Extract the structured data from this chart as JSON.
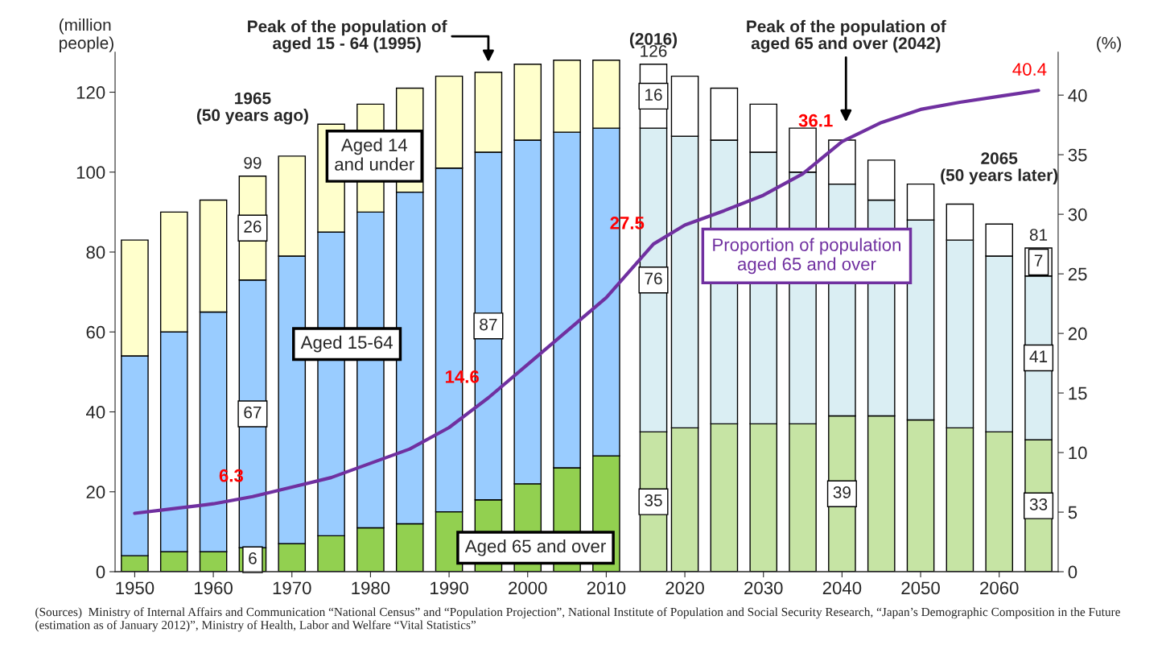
{
  "chart_data": {
    "type": "bar",
    "stacked": true,
    "ylabel": "(million\npeople)",
    "y2label": "(%)",
    "x": [
      1950,
      1955,
      1960,
      1965,
      1970,
      1975,
      1980,
      1985,
      1990,
      1995,
      2000,
      2005,
      2010,
      2016,
      2020,
      2025,
      2030,
      2035,
      2040,
      2045,
      2050,
      2055,
      2060,
      2065
    ],
    "xlim": [
      1947.5,
      2067.5
    ],
    "xticks": [
      1950,
      1960,
      1970,
      1980,
      1990,
      2000,
      2010,
      2020,
      2030,
      2040,
      2050,
      2060
    ],
    "ylim": [
      0,
      130
    ],
    "yticks": [
      0,
      20,
      40,
      60,
      80,
      100,
      120
    ],
    "y2lim": [
      0,
      43.6
    ],
    "y2ticks": [
      0,
      5,
      10,
      15,
      20,
      25,
      30,
      35,
      40
    ],
    "grid": false,
    "legend": false,
    "series": [
      {
        "name": "Aged 65 and over",
        "values": [
          4,
          5,
          5,
          6,
          7,
          9,
          11,
          12,
          15,
          18,
          22,
          26,
          29,
          35,
          36,
          37,
          37,
          37,
          39,
          39,
          38,
          36,
          35,
          33
        ],
        "colors": [
          "#92d050",
          "#92d050",
          "#92d050",
          "#92d050",
          "#92d050",
          "#92d050",
          "#92d050",
          "#92d050",
          "#92d050",
          "#92d050",
          "#92d050",
          "#92d050",
          "#92d050",
          "#c6e4a4",
          "#c6e4a4",
          "#c6e4a4",
          "#c6e4a4",
          "#c6e4a4",
          "#c6e4a4",
          "#c6e4a4",
          "#c6e4a4",
          "#c6e4a4",
          "#c6e4a4",
          "#c6e4a4"
        ],
        "value_labels": [
          null,
          null,
          null,
          "6",
          null,
          null,
          null,
          null,
          null,
          null,
          null,
          null,
          null,
          "35",
          null,
          null,
          null,
          null,
          "39",
          null,
          null,
          null,
          null,
          "33"
        ]
      },
      {
        "name": "Aged 15-64",
        "values": [
          50,
          55,
          60,
          67,
          72,
          76,
          79,
          83,
          86,
          87,
          86,
          84,
          82,
          76,
          73,
          71,
          68,
          63,
          58,
          54,
          50,
          47,
          44,
          41
        ],
        "colors": [
          "#99ccff",
          "#99ccff",
          "#99ccff",
          "#99ccff",
          "#99ccff",
          "#99ccff",
          "#99ccff",
          "#99ccff",
          "#99ccff",
          "#99ccff",
          "#99ccff",
          "#99ccff",
          "#99ccff",
          "#daeef3",
          "#daeef3",
          "#daeef3",
          "#daeef3",
          "#daeef3",
          "#daeef3",
          "#daeef3",
          "#daeef3",
          "#daeef3",
          "#daeef3",
          "#daeef3"
        ],
        "value_labels": [
          null,
          null,
          null,
          "67",
          null,
          null,
          null,
          null,
          null,
          "87",
          null,
          null,
          null,
          "76",
          null,
          null,
          null,
          null,
          null,
          null,
          null,
          null,
          null,
          "41"
        ]
      },
      {
        "name": "Aged 14\nand under",
        "values": [
          29,
          30,
          28,
          26,
          25,
          27,
          27,
          26,
          23,
          20,
          19,
          18,
          17,
          16,
          15,
          13,
          12,
          11,
          11,
          10,
          9,
          9,
          8,
          7
        ],
        "colors": [
          "#ffffcc",
          "#ffffcc",
          "#ffffcc",
          "#ffffcc",
          "#ffffcc",
          "#ffffcc",
          "#ffffcc",
          "#ffffcc",
          "#ffffcc",
          "#ffffcc",
          "#ffffcc",
          "#ffffcc",
          "#ffffcc",
          "#ffffff",
          "#ffffff",
          "#ffffff",
          "#ffffff",
          "#ffffff",
          "#ffffff",
          "#ffffff",
          "#ffffff",
          "#ffffff",
          "#ffffff",
          "#ffffff"
        ],
        "value_labels": [
          null,
          null,
          null,
          "26",
          null,
          null,
          null,
          null,
          null,
          null,
          null,
          null,
          null,
          "16",
          null,
          null,
          null,
          null,
          null,
          null,
          null,
          null,
          null,
          "7"
        ]
      },
      {
        "name": "Proportion of population\naged 65 and over",
        "type": "line",
        "axis": "y2",
        "color": "#7030a0",
        "marker": "none",
        "line_style": "solid",
        "values": [
          4.9,
          5.3,
          5.7,
          6.3,
          7.1,
          7.9,
          9.1,
          10.3,
          12.1,
          14.6,
          17.4,
          20.2,
          23.0,
          27.5,
          29.1,
          30.3,
          31.6,
          33.4,
          36.1,
          37.7,
          38.8,
          39.4,
          39.9,
          40.4
        ],
        "value_labels": [
          null,
          null,
          null,
          "6.3",
          null,
          null,
          null,
          null,
          null,
          "14.6",
          null,
          null,
          null,
          "27.5",
          null,
          null,
          null,
          null,
          "36.1",
          null,
          null,
          null,
          null,
          "40.4"
        ]
      }
    ],
    "totals": [
      null,
      null,
      null,
      "99",
      null,
      null,
      null,
      null,
      null,
      null,
      null,
      null,
      null,
      "126",
      null,
      null,
      null,
      null,
      null,
      null,
      null,
      null,
      null,
      "81"
    ],
    "annotations": [
      "Peak of the population of\naged 15 - 64 (1995)",
      "(2016)",
      "Peak of the population of\naged 65 and over (2042)",
      "1965\n(50 years ago)",
      "2065\n(50 years later)",
      "(Sources)  Ministry of Internal Affairs and Communication “National Census” and “Population Projection”, National Institute of Population and Social Security Research, “Japan’s Demographic Composition in the Future (estimation as of January 2012)”, Ministry of Health, Labor and Welfare “Vital Statistics”"
    ]
  }
}
